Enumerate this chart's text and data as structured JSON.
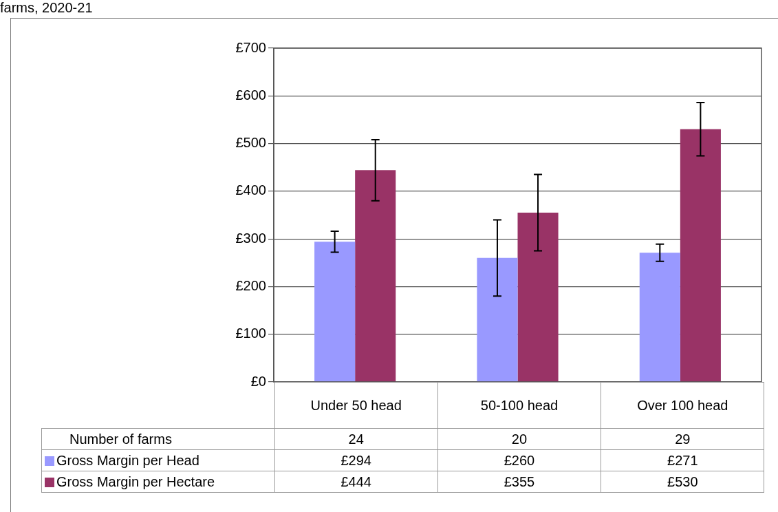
{
  "chart_data": {
    "type": "bar",
    "title": "farms, 2020-21",
    "categories": [
      "Under 50 head",
      "50-100 head",
      "Over 100 head"
    ],
    "series": [
      {
        "name": "Gross Margin per Head",
        "color": "#9999ff",
        "values": [
          294,
          260,
          271
        ],
        "errors": [
          22,
          80,
          18
        ],
        "value_labels": [
          "£294",
          "£260",
          "£271"
        ]
      },
      {
        "name": "Gross Margin per Hectare",
        "color": "#993366",
        "values": [
          444,
          355,
          530
        ],
        "errors": [
          64,
          80,
          56
        ],
        "value_labels": [
          "£444",
          "£355",
          "£530"
        ]
      }
    ],
    "ylim": [
      0,
      700
    ],
    "yticks": [
      {
        "value": 0,
        "label": "£0"
      },
      {
        "value": 100,
        "label": "£100"
      },
      {
        "value": 200,
        "label": "£200"
      },
      {
        "value": 300,
        "label": "£300"
      },
      {
        "value": 400,
        "label": "£400"
      },
      {
        "value": 500,
        "label": "£500"
      },
      {
        "value": 600,
        "label": "£600"
      },
      {
        "value": 700,
        "label": "£700"
      }
    ],
    "grid": "y",
    "legend": "bottom",
    "annotations": [
      "Number of farms",
      "24",
      "20",
      "29"
    ]
  }
}
